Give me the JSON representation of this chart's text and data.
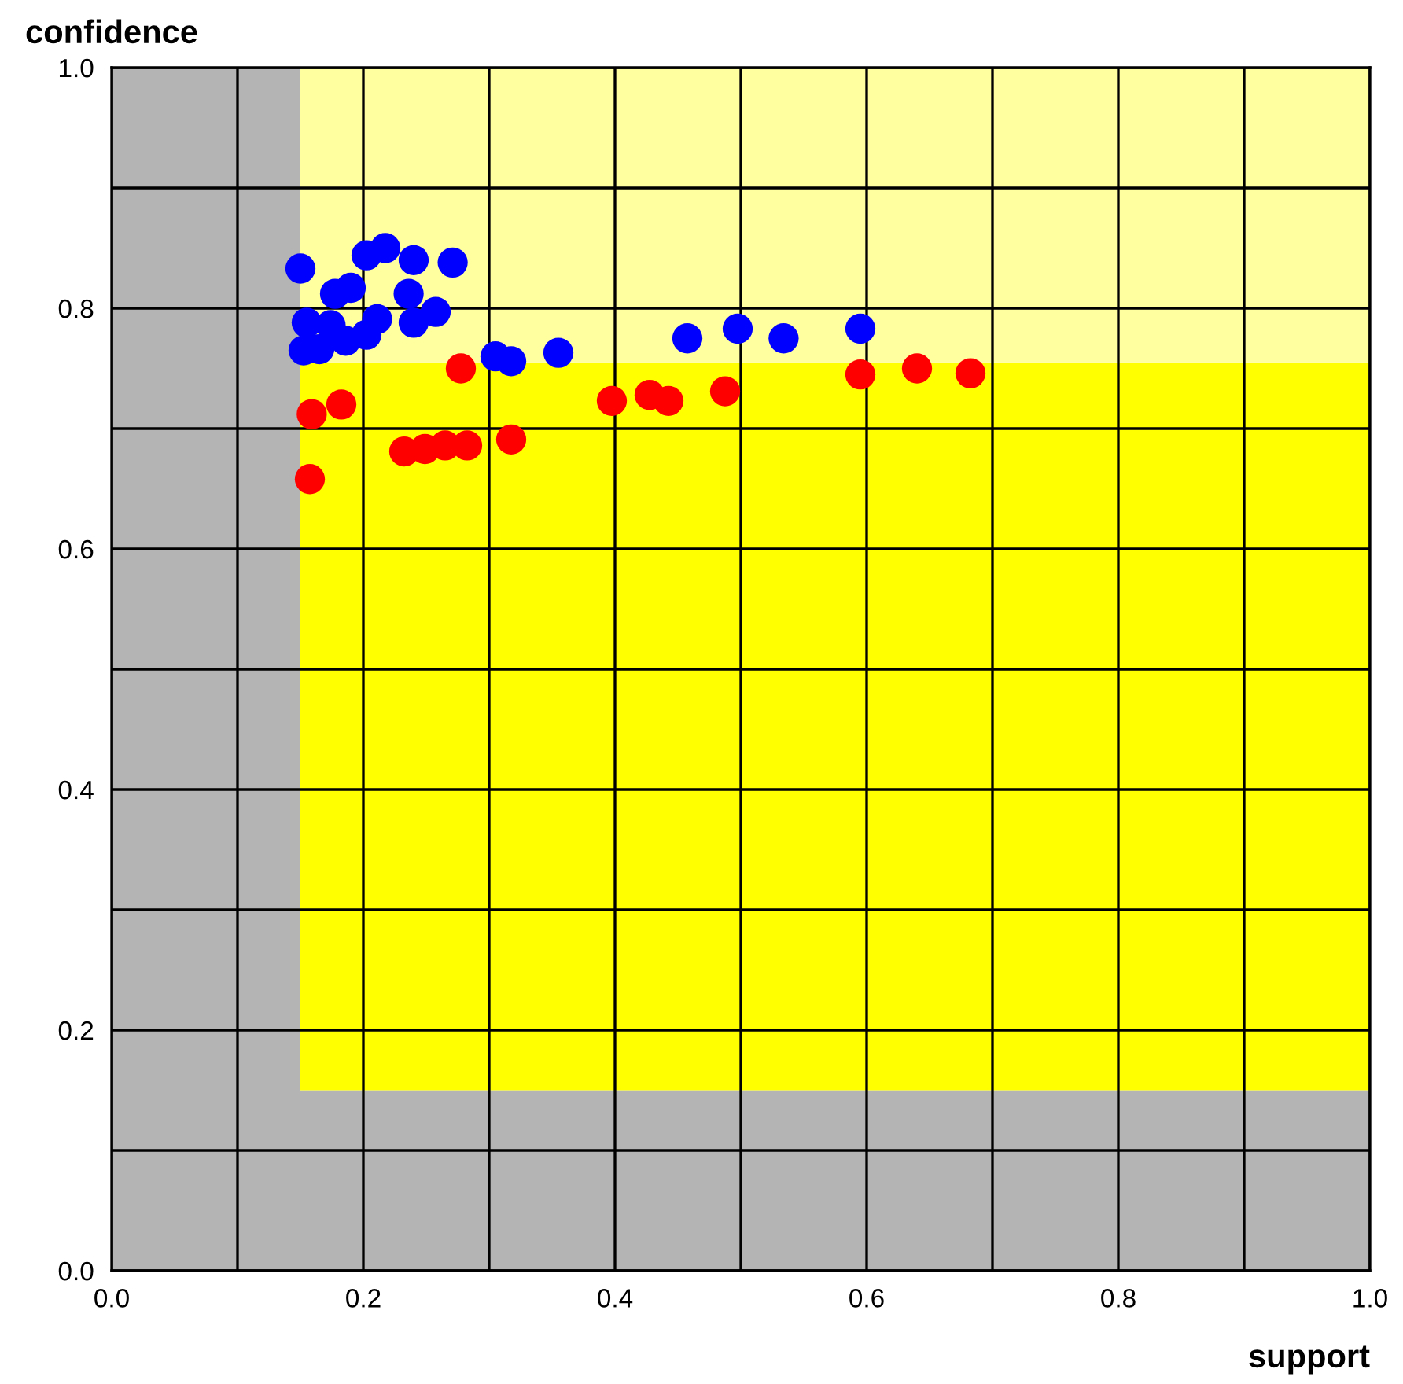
{
  "chart_data": {
    "type": "scatter",
    "xlabel": "support",
    "ylabel": "confidence",
    "xlim": [
      0,
      1
    ],
    "ylim": [
      0,
      1
    ],
    "xticks": [
      {
        "value": 0,
        "label": "0.0"
      },
      {
        "value": 0.1,
        "label": null
      },
      0.2,
      {
        "value": 0.3,
        "label": null
      },
      0.4,
      {
        "value": 0.5,
        "label": null
      },
      0.6,
      {
        "value": 0.7,
        "label": null
      },
      0.8,
      {
        "value": 0.9,
        "label": null
      },
      {
        "value": 1,
        "label": "1.0"
      }
    ],
    "yticks": [
      {
        "value": 0,
        "label": "0.0"
      },
      {
        "value": 0.1,
        "label": null
      },
      0.2,
      {
        "value": 0.3,
        "label": null
      },
      0.4,
      {
        "value": 0.5,
        "label": null
      },
      0.6,
      {
        "value": 0.7,
        "label": null
      },
      0.8,
      {
        "value": 0.9,
        "label": null
      },
      {
        "value": 1,
        "label": "1.0"
      }
    ],
    "grid": true,
    "marker": "circle",
    "bands": [
      {
        "axis": "y",
        "from": 0,
        "to": 0.15,
        "color": "#b4b4b4"
      },
      {
        "axis": "y",
        "from": 0.15,
        "to": 0.755,
        "color": "#ffff00"
      },
      {
        "axis": "y",
        "from": 0.755,
        "to": 1,
        "color": "#ffffa0"
      },
      {
        "axis": "x",
        "from": 0,
        "to": 0.15,
        "color": "#b4b4b4"
      }
    ],
    "series": [
      {
        "color": "#ff0000",
        "x": [
          0.1575,
          0.159,
          0.1825,
          0.2775,
          0.2325,
          0.249,
          0.265,
          0.2825,
          0.3175,
          0.3975,
          0.4275,
          0.4425,
          0.4875,
          0.595,
          0.64,
          0.6825
        ],
        "values": [
          0.658,
          0.712,
          0.72,
          0.75,
          0.681,
          0.683,
          0.686,
          0.686,
          0.691,
          0.723,
          0.728,
          0.723,
          0.731,
          0.745,
          0.75,
          0.746
        ]
      },
      {
        "color": "#0000ff",
        "x": [
          0.355,
          0.305,
          0.3175,
          0.4575,
          0.4975,
          0.534,
          0.595,
          0.15,
          0.2025,
          0.2175,
          0.24,
          0.265,
          0.271,
          0.1775,
          0.19,
          0.236,
          0.211,
          0.155,
          0.174,
          0.2575,
          0.24,
          0.1525,
          0.165,
          0.186,
          0.2025
        ],
        "values": [
          0.763,
          0.76,
          0.756,
          0.775,
          0.783,
          0.775,
          0.783,
          0.833,
          0.844,
          0.85,
          0.84,
          null,
          0.838,
          0.812,
          0.817,
          0.812,
          0.791,
          0.788,
          0.786,
          0.797,
          0.788,
          0.765,
          0.766,
          0.773,
          0.778
        ]
      }
    ]
  }
}
